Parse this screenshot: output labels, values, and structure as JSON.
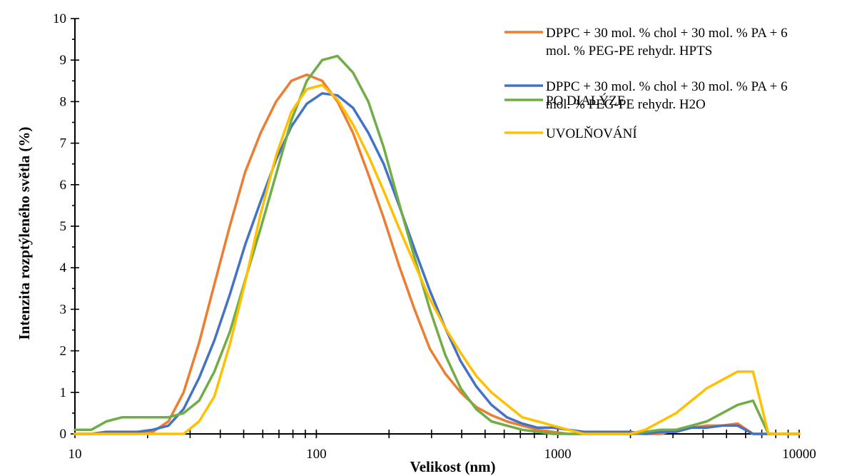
{
  "chart_data": {
    "type": "line",
    "title": "",
    "xlabel": "Velikost (nm)",
    "ylabel": "Intenzita rozptýleného světla (%)",
    "xscale": "log",
    "xlim": [
      10,
      10000
    ],
    "ylim": [
      0,
      10
    ],
    "x_ticks": [
      "10",
      "100",
      "1000",
      "10000"
    ],
    "y_ticks": [
      "0",
      "1",
      "2",
      "3",
      "4",
      "5",
      "6",
      "7",
      "8",
      "9",
      "10"
    ],
    "grid": false,
    "legend_position": "top-right",
    "x": [
      10,
      11.7,
      13.5,
      15.7,
      18.2,
      21.0,
      24.4,
      28.2,
      32.7,
      37.8,
      43.8,
      50.7,
      58.8,
      68.1,
      78.8,
      91.3,
      105.7,
      122.4,
      141.8,
      164.2,
      190.1,
      220.2,
      255.0,
      295.3,
      342.0,
      396.1,
      458.7,
      531.2,
      615.1,
      712.4,
      825.0,
      955.4,
      1106,
      1281,
      1484,
      1718,
      1990,
      2305,
      2669,
      3091,
      3580,
      4145,
      4801,
      5560,
      6439,
      7456,
      8635,
      10000
    ],
    "series": [
      {
        "name": "DPPC + 30 mol. % chol + 30 mol. % PA + 6 mol. % PEG-PE rehydr. HPTS",
        "color": "#ED7D31",
        "values": [
          0,
          0,
          0,
          0,
          0,
          0.05,
          0.3,
          1.0,
          2.2,
          3.6,
          5.0,
          6.3,
          7.25,
          8.0,
          8.5,
          8.65,
          8.5,
          8.0,
          7.25,
          6.25,
          5.2,
          4.05,
          3.0,
          2.05,
          1.45,
          1.0,
          0.65,
          0.45,
          0.3,
          0.2,
          0.1,
          0.05,
          0,
          0,
          0,
          0,
          0,
          0,
          0,
          0.1,
          0.15,
          0.2,
          0.2,
          0.25,
          0,
          0,
          0,
          0
        ]
      },
      {
        "name": "DPPC + 30 mol. % chol + 30 mol. % PA + 6 mol. % PEG-PE rehydr. H2O",
        "color": "#4472C4",
        "values": [
          0,
          0,
          0.05,
          0.05,
          0.05,
          0.1,
          0.2,
          0.6,
          1.35,
          2.25,
          3.35,
          4.55,
          5.6,
          6.6,
          7.4,
          7.95,
          8.2,
          8.15,
          7.85,
          7.25,
          6.5,
          5.5,
          4.45,
          3.45,
          2.55,
          1.75,
          1.15,
          0.7,
          0.4,
          0.25,
          0.15,
          0.15,
          0.1,
          0.05,
          0.05,
          0.05,
          0.05,
          0,
          0.05,
          0.05,
          0.15,
          0.15,
          0.2,
          0.2,
          0,
          0,
          0,
          0
        ]
      },
      {
        "name": "PO DIALÝZE",
        "color": "#70AD47",
        "values": [
          0.1,
          0.1,
          0.3,
          0.4,
          0.4,
          0.4,
          0.4,
          0.5,
          0.8,
          1.5,
          2.45,
          3.7,
          4.95,
          6.25,
          7.55,
          8.5,
          9.0,
          9.1,
          8.7,
          8.0,
          6.9,
          5.55,
          4.25,
          3.0,
          1.9,
          1.1,
          0.6,
          0.3,
          0.2,
          0.1,
          0.05,
          0,
          0,
          0,
          0,
          0,
          0,
          0.05,
          0.1,
          0.1,
          0.2,
          0.3,
          0.5,
          0.7,
          0.8,
          0,
          0,
          0
        ]
      },
      {
        "name": "UVOLŇOVÁNÍ",
        "color": "#FFC000",
        "values": [
          0,
          0,
          0,
          0,
          0,
          0,
          0,
          0,
          0.3,
          0.9,
          2.15,
          3.65,
          5.3,
          6.7,
          7.75,
          8.3,
          8.4,
          8.05,
          7.45,
          6.7,
          5.85,
          4.95,
          4.1,
          3.25,
          2.55,
          1.95,
          1.4,
          1.0,
          0.7,
          0.4,
          0.3,
          0.2,
          0.1,
          0,
          0,
          0,
          0,
          0.1,
          0.3,
          0.5,
          0.8,
          1.1,
          1.3,
          1.5,
          1.5,
          0,
          0,
          0
        ]
      }
    ]
  }
}
